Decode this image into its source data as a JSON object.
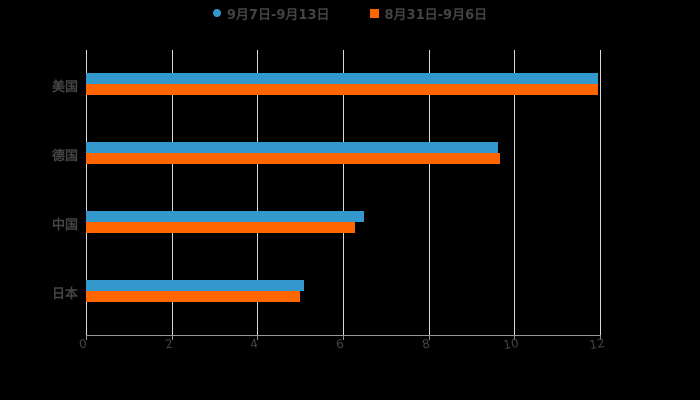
{
  "chart_data": {
    "type": "bar",
    "orientation": "horizontal",
    "title": "",
    "categories": [
      "美国",
      "德国",
      "中国",
      "日本"
    ],
    "series": [
      {
        "name": "9月7日-9月13日",
        "color": "#3399cc",
        "values": [
          11.95,
          9.62,
          6.49,
          5.09
        ]
      },
      {
        "name": "8月31日-9月6日",
        "color": "#ff6600",
        "values": [
          11.95,
          9.67,
          6.28,
          5.0
        ]
      }
    ],
    "xlabel": "",
    "ylabel": "",
    "xlim": [
      0,
      12
    ],
    "xticks": [
      "0",
      "2",
      "4",
      "6",
      "8",
      "10",
      "12"
    ],
    "grid": true,
    "legend_position": "top"
  },
  "legend": {
    "items": [
      {
        "label": "9月7日-9月13日",
        "color": "#3399cc",
        "marker": "circle"
      },
      {
        "label": "8月31日-9月6日",
        "color": "#ff6600",
        "marker": "square"
      }
    ]
  }
}
